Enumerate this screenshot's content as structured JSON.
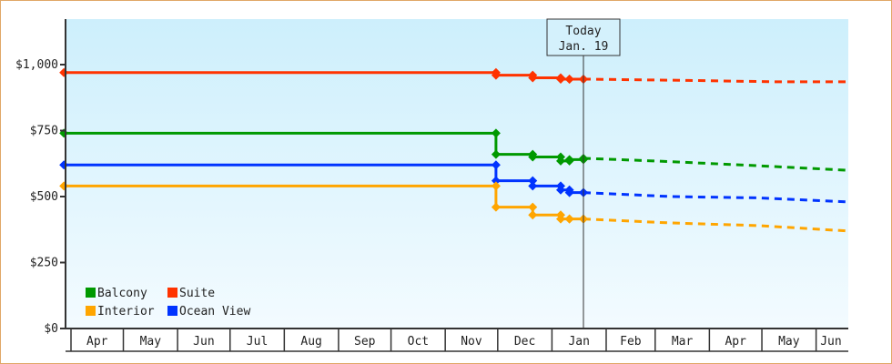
{
  "chart_data": {
    "type": "line",
    "title": "",
    "xlabel": "",
    "ylabel": "",
    "x_units": "days relative to today (Jan. 19)",
    "xlim": [
      -297,
      150
    ],
    "ylim": [
      0,
      1170
    ],
    "y_ticks": [
      {
        "value": 0,
        "label": "$0"
      },
      {
        "value": 250,
        "label": "$250"
      },
      {
        "value": 500,
        "label": "$500"
      },
      {
        "value": 750,
        "label": "$750"
      },
      {
        "value": 1000,
        "label": "$1,000"
      }
    ],
    "months": [
      {
        "label": "Apr",
        "start": -293,
        "end": -263
      },
      {
        "label": "May",
        "start": -263,
        "end": -232
      },
      {
        "label": "Jun",
        "start": -232,
        "end": -202
      },
      {
        "label": "Jul",
        "start": -202,
        "end": -171
      },
      {
        "label": "Aug",
        "start": -171,
        "end": -140
      },
      {
        "label": "Sep",
        "start": -140,
        "end": -110
      },
      {
        "label": "Oct",
        "start": -110,
        "end": -79
      },
      {
        "label": "Nov",
        "start": -79,
        "end": -49
      },
      {
        "label": "Dec",
        "start": -49,
        "end": -18
      },
      {
        "label": "Jan",
        "start": -18,
        "end": 13
      },
      {
        "label": "Feb",
        "start": 13,
        "end": 41
      },
      {
        "label": "Mar",
        "start": 41,
        "end": 72
      },
      {
        "label": "Apr",
        "start": 72,
        "end": 102
      },
      {
        "label": "May",
        "start": 102,
        "end": 133
      },
      {
        "label": "Jun",
        "start": 133,
        "end": 150
      }
    ],
    "today": {
      "line1": "Today",
      "line2": "Jan. 19",
      "x": 0
    },
    "legend": {
      "placement": "bottom-left"
    },
    "series": [
      {
        "name": "Suite",
        "color": "#ff3300",
        "history": [
          [
            -297,
            970
          ],
          [
            -50,
            960
          ],
          [
            -29,
            950
          ],
          [
            -13,
            945
          ],
          [
            -8,
            945
          ],
          [
            0,
            945
          ]
        ],
        "forecast": [
          [
            0,
            945
          ],
          [
            60,
            940
          ],
          [
            110,
            935
          ],
          [
            150,
            935
          ]
        ]
      },
      {
        "name": "Balcony",
        "color": "#009900",
        "history": [
          [
            -297,
            740
          ],
          [
            -50,
            660
          ],
          [
            -29,
            650
          ],
          [
            -13,
            635
          ],
          [
            -8,
            640
          ],
          [
            0,
            645
          ]
        ],
        "forecast": [
          [
            0,
            645
          ],
          [
            40,
            635
          ],
          [
            90,
            620
          ],
          [
            150,
            600
          ]
        ]
      },
      {
        "name": "Ocean View",
        "color": "#0033ff",
        "history": [
          [
            -297,
            620
          ],
          [
            -50,
            560
          ],
          [
            -29,
            540
          ],
          [
            -13,
            525
          ],
          [
            -8,
            515
          ],
          [
            0,
            515
          ]
        ],
        "forecast": [
          [
            0,
            515
          ],
          [
            50,
            500
          ],
          [
            100,
            495
          ],
          [
            150,
            480
          ]
        ]
      },
      {
        "name": "Interior",
        "color": "#ffa500",
        "history": [
          [
            -297,
            540
          ],
          [
            -50,
            460
          ],
          [
            -29,
            430
          ],
          [
            -13,
            415
          ],
          [
            -8,
            415
          ],
          [
            0,
            415
          ]
        ],
        "forecast": [
          [
            0,
            415
          ],
          [
            50,
            400
          ],
          [
            100,
            390
          ],
          [
            150,
            370
          ]
        ]
      }
    ],
    "legend_order": [
      "Balcony",
      "Suite",
      "Interior",
      "Ocean View"
    ]
  }
}
